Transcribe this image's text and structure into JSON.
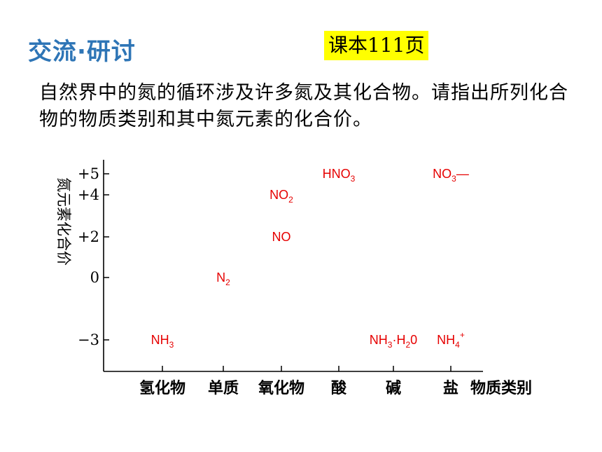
{
  "header": {
    "title": "交流·研讨",
    "badge": "课本111页"
  },
  "intro": "自然界中的氮的循环涉及许多氮及其化合物。请指出所列化合物的物质类别和其中氮元素的化合价。",
  "colors": {
    "title": "#2e75b6",
    "badge_bg": "#ffff00",
    "points": "#e60000",
    "axis": "#000000"
  },
  "chart_data": {
    "type": "scatter",
    "ylabel": "氮元素化合价",
    "xlabel": "物质类别",
    "categories": [
      "氢化物",
      "单质",
      "氧化物",
      "酸",
      "碱",
      "盐"
    ],
    "yticks": [
      {
        "value": 5,
        "label": "+5"
      },
      {
        "value": 4,
        "label": "+4"
      },
      {
        "value": 2,
        "label": "+2"
      },
      {
        "value": 0,
        "label": "0"
      },
      {
        "value": -3,
        "label": "−3"
      }
    ],
    "ylim": [
      -3,
      5
    ],
    "points": [
      {
        "category": "氢化物",
        "y": -3,
        "base": "NH",
        "sub": "3",
        "rest": ""
      },
      {
        "category": "单质",
        "y": 0,
        "base": "N",
        "sub": "2",
        "rest": ""
      },
      {
        "category": "氧化物",
        "y": 2,
        "base": "NO",
        "sub": "",
        "rest": ""
      },
      {
        "category": "氧化物",
        "y": 4,
        "base": "NO",
        "sub": "2",
        "rest": ""
      },
      {
        "category": "酸",
        "y": 5,
        "base": "HNO",
        "sub": "3",
        "rest": ""
      },
      {
        "category": "碱",
        "y": -3,
        "base": "NH",
        "sub": "3",
        "rest": "·H",
        "sub2": "2",
        "rest2": "0"
      },
      {
        "category": "盐",
        "y": -3,
        "base": "NH",
        "sub": "4",
        "rest": "",
        "sup": "+"
      },
      {
        "category": "盐",
        "y": 5,
        "base": "NO",
        "sub": "3",
        "rest": "—"
      }
    ]
  }
}
